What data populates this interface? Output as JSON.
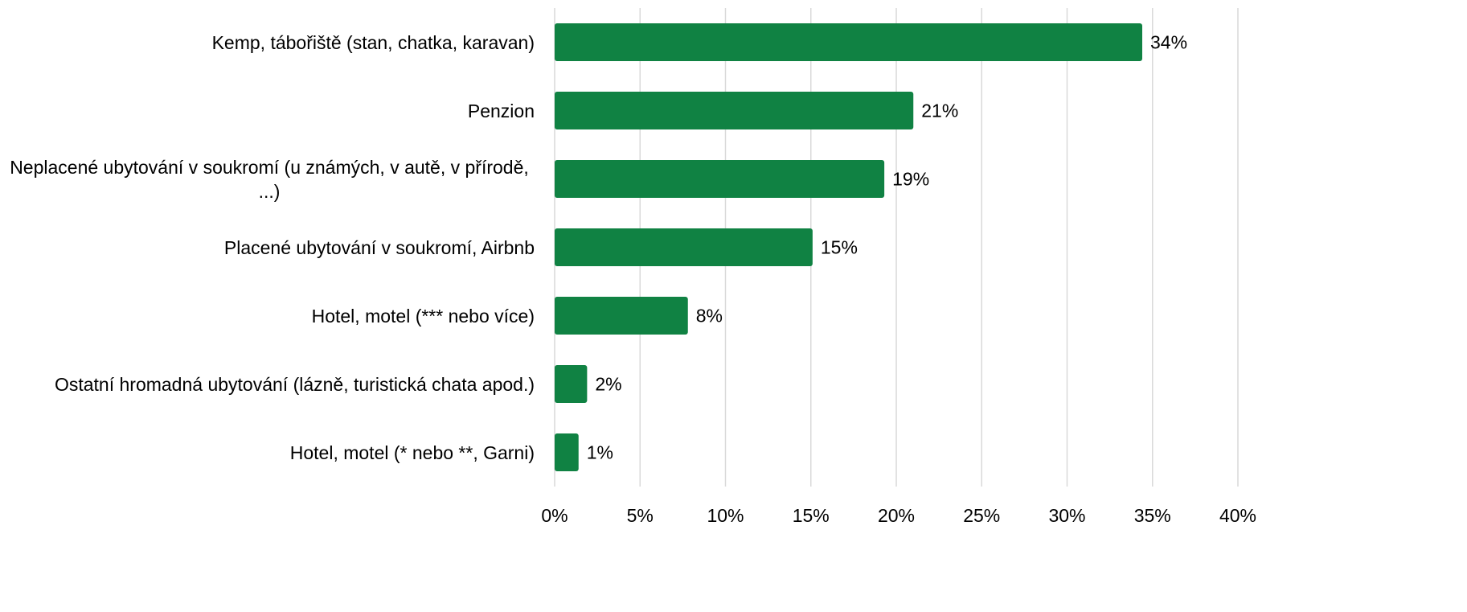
{
  "chart_data": {
    "type": "bar",
    "orientation": "horizontal",
    "categories": [
      "Kemp, tábořiště (stan, chatka, karavan)",
      "Penzion",
      "Neplacené ubytování v soukromí (u známých, v autě, v přírodě, ...)",
      "Placené ubytování v soukromí, Airbnb",
      "Hotel, motel (*** nebo více)",
      "Ostatní hromadná ubytování (lázně, turistická chata apod.)",
      "Hotel, motel (* nebo **, Garni)"
    ],
    "values": [
      34.4,
      21,
      19.3,
      15.1,
      7.8,
      1.9,
      1.4
    ],
    "value_labels": [
      "34%",
      "21%",
      "19%",
      "15%",
      "8%",
      "2%",
      "1%"
    ],
    "color": "#108243",
    "xlim": [
      0,
      40
    ],
    "xticks": [
      {
        "value": 0,
        "label": "0%"
      },
      {
        "value": 5,
        "label": "5%"
      },
      {
        "value": 10,
        "label": "10%"
      },
      {
        "value": 15,
        "label": "15%"
      },
      {
        "value": 20,
        "label": "20%"
      },
      {
        "value": 25,
        "label": "25%"
      },
      {
        "value": 30,
        "label": "30%"
      },
      {
        "value": 35,
        "label": "35%"
      },
      {
        "value": 40,
        "label": "40%"
      }
    ],
    "grid": true
  }
}
